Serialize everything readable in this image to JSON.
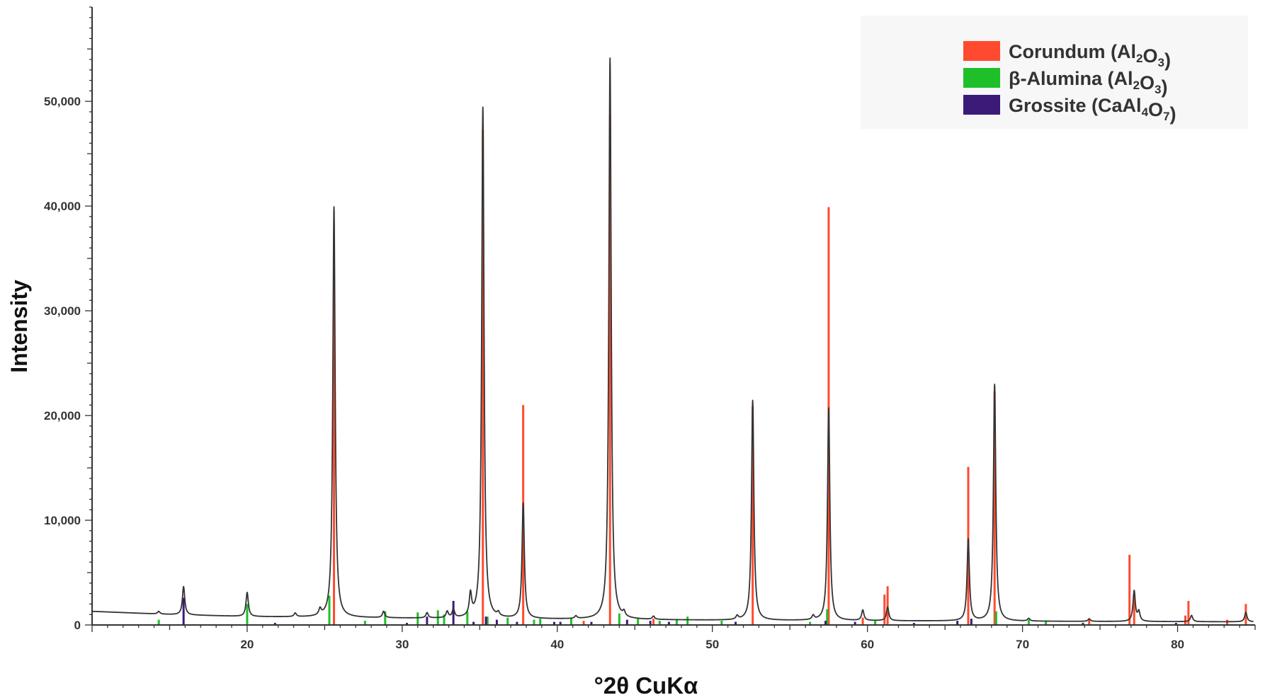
{
  "chart_data": {
    "type": "line",
    "xlabel": "°2θ CuKα",
    "ylabel": "Intensity",
    "xlim": [
      10,
      85
    ],
    "ylim": [
      0,
      59000
    ],
    "x_ticks": [
      20,
      30,
      40,
      50,
      60,
      70,
      80
    ],
    "y_ticks": [
      0,
      10000,
      20000,
      30000,
      40000,
      50000
    ],
    "y_tick_labels": [
      "0",
      "10,000",
      "20,000",
      "30,000",
      "40,000",
      "50,000"
    ],
    "grid": false,
    "legend_position": "top-right",
    "legend": [
      {
        "label": "Corundum",
        "formula": [
          [
            "Al",
            ""
          ],
          [
            "2",
            "sub"
          ],
          [
            "O",
            ""
          ],
          [
            "3",
            "sub"
          ]
        ],
        "color": "#ff4a2f"
      },
      {
        "label": "β-Alumina",
        "formula": [
          [
            "Al",
            ""
          ],
          [
            "2",
            "sub"
          ],
          [
            "O",
            ""
          ],
          [
            "3",
            "sub"
          ]
        ],
        "color": "#1fbf2a"
      },
      {
        "label": "Grossite",
        "formula": [
          [
            "CaAl",
            ""
          ],
          [
            "4",
            "sub"
          ],
          [
            "O",
            ""
          ],
          [
            "7",
            "sub"
          ]
        ],
        "color": "#3c1a78"
      }
    ],
    "pattern": {
      "name": "",
      "color": "#333333",
      "baseline": [
        [
          10,
          1300
        ],
        [
          15,
          1000
        ],
        [
          20,
          800
        ],
        [
          30,
          650
        ],
        [
          40,
          550
        ],
        [
          50,
          450
        ],
        [
          60,
          400
        ],
        [
          70,
          350
        ],
        [
          85,
          300
        ]
      ],
      "peaks": [
        [
          14.3,
          250
        ],
        [
          15.9,
          2700
        ],
        [
          20.0,
          2300
        ],
        [
          23.1,
          350
        ],
        [
          24.7,
          600
        ],
        [
          25.6,
          39200
        ],
        [
          28.8,
          600
        ],
        [
          31.6,
          500
        ],
        [
          32.9,
          600
        ],
        [
          33.3,
          800
        ],
        [
          34.4,
          2100
        ],
        [
          35.2,
          48800
        ],
        [
          36.2,
          350
        ],
        [
          37.8,
          11000
        ],
        [
          41.2,
          250
        ],
        [
          43.4,
          53600
        ],
        [
          44.3,
          450
        ],
        [
          46.2,
          300
        ],
        [
          51.6,
          350
        ],
        [
          52.6,
          21000
        ],
        [
          56.5,
          400
        ],
        [
          57.5,
          20300
        ],
        [
          59.7,
          1000
        ],
        [
          61.3,
          1300
        ],
        [
          66.5,
          7800
        ],
        [
          68.2,
          22600
        ],
        [
          70.4,
          250
        ],
        [
          74.3,
          250
        ],
        [
          77.2,
          2900
        ],
        [
          77.5,
          900
        ],
        [
          80.9,
          600
        ],
        [
          84.4,
          900
        ]
      ]
    },
    "series": [
      {
        "name": "Corundum (Al2O3)",
        "color": "#ff4a2f",
        "sticks": [
          [
            25.6,
            34500
          ],
          [
            35.2,
            47300
          ],
          [
            37.8,
            21000
          ],
          [
            41.7,
            400
          ],
          [
            43.4,
            48700
          ],
          [
            46.2,
            600
          ],
          [
            52.6,
            20900
          ],
          [
            57.5,
            39900
          ],
          [
            59.7,
            700
          ],
          [
            61.1,
            2900
          ],
          [
            61.3,
            3700
          ],
          [
            66.5,
            15100
          ],
          [
            68.2,
            22300
          ],
          [
            74.3,
            600
          ],
          [
            76.9,
            6700
          ],
          [
            77.2,
            2800
          ],
          [
            80.5,
            900
          ],
          [
            80.7,
            2300
          ],
          [
            83.2,
            500
          ],
          [
            84.4,
            2000
          ]
        ]
      },
      {
        "name": "β-Alumina (Al2O3)",
        "color": "#1fbf2a",
        "sticks": [
          [
            14.3,
            500
          ],
          [
            20.0,
            2000
          ],
          [
            25.3,
            2800
          ],
          [
            27.6,
            400
          ],
          [
            28.9,
            1300
          ],
          [
            31.0,
            1200
          ],
          [
            32.3,
            1400
          ],
          [
            32.7,
            1000
          ],
          [
            34.2,
            1300
          ],
          [
            35.5,
            800
          ],
          [
            36.8,
            700
          ],
          [
            38.5,
            500
          ],
          [
            38.9,
            600
          ],
          [
            40.9,
            700
          ],
          [
            44.0,
            1100
          ],
          [
            45.2,
            700
          ],
          [
            46.6,
            400
          ],
          [
            47.7,
            500
          ],
          [
            48.4,
            800
          ],
          [
            50.6,
            400
          ],
          [
            56.3,
            300
          ],
          [
            57.4,
            1500
          ],
          [
            60.5,
            400
          ],
          [
            68.3,
            1300
          ],
          [
            70.4,
            500
          ],
          [
            71.5,
            400
          ]
        ]
      },
      {
        "name": "Grossite (CaAl4O7)",
        "color": "#3c1a78",
        "sticks": [
          [
            15.9,
            2600
          ],
          [
            21.8,
            200
          ],
          [
            30.3,
            200
          ],
          [
            31.6,
            800
          ],
          [
            33.3,
            2300
          ],
          [
            34.6,
            300
          ],
          [
            35.4,
            800
          ],
          [
            36.1,
            500
          ],
          [
            37.4,
            300
          ],
          [
            39.8,
            300
          ],
          [
            40.2,
            300
          ],
          [
            42.2,
            300
          ],
          [
            44.5,
            500
          ],
          [
            46.0,
            400
          ],
          [
            47.2,
            300
          ],
          [
            51.5,
            300
          ],
          [
            57.3,
            400
          ],
          [
            59.2,
            300
          ],
          [
            63.0,
            200
          ],
          [
            65.8,
            400
          ],
          [
            66.7,
            600
          ],
          [
            73.9,
            200
          ],
          [
            79.9,
            200
          ]
        ]
      }
    ]
  }
}
